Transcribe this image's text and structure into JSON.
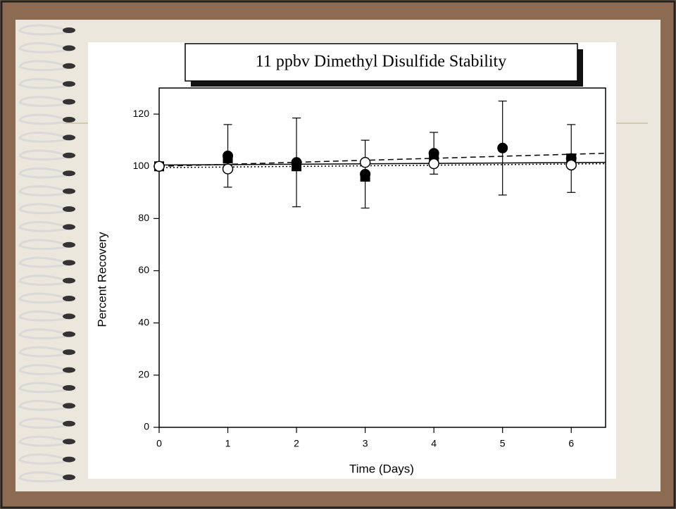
{
  "chart_data": {
    "type": "scatter",
    "title": "11 ppbv Dimethyl Disulfide Stability",
    "x_label": "Time (Days)",
    "y_label": "Percent Recovery",
    "x": [
      0,
      1,
      2,
      3,
      4,
      5,
      6
    ],
    "xlim": [
      0,
      6.5
    ],
    "xticks": [
      0,
      1,
      2,
      3,
      4,
      5,
      6
    ],
    "ylim": [
      0,
      130
    ],
    "yticks": [
      0,
      20,
      40,
      60,
      80,
      100,
      120
    ],
    "series": [
      {
        "marker": "circle",
        "color": "#000000",
        "values": [
          100,
          104,
          101.5,
          97,
          105,
          107,
          103
        ],
        "errors": [
          null,
          12,
          17,
          13,
          8,
          18,
          13
        ]
      },
      {
        "marker": "square",
        "color": "#000000",
        "values": [
          100,
          103,
          100,
          96,
          103,
          null,
          103
        ]
      },
      {
        "marker": "open-circle",
        "color": "#000000",
        "values": [
          100,
          99,
          null,
          101.5,
          101,
          null,
          100.5
        ]
      }
    ],
    "trends": [
      {
        "dash": "8,5",
        "values": [
          100,
          105
        ]
      },
      {
        "dash": "none",
        "values": [
          100.5,
          101.5
        ]
      },
      {
        "dash": "2,3",
        "values": [
          99.5,
          101
        ]
      }
    ]
  }
}
